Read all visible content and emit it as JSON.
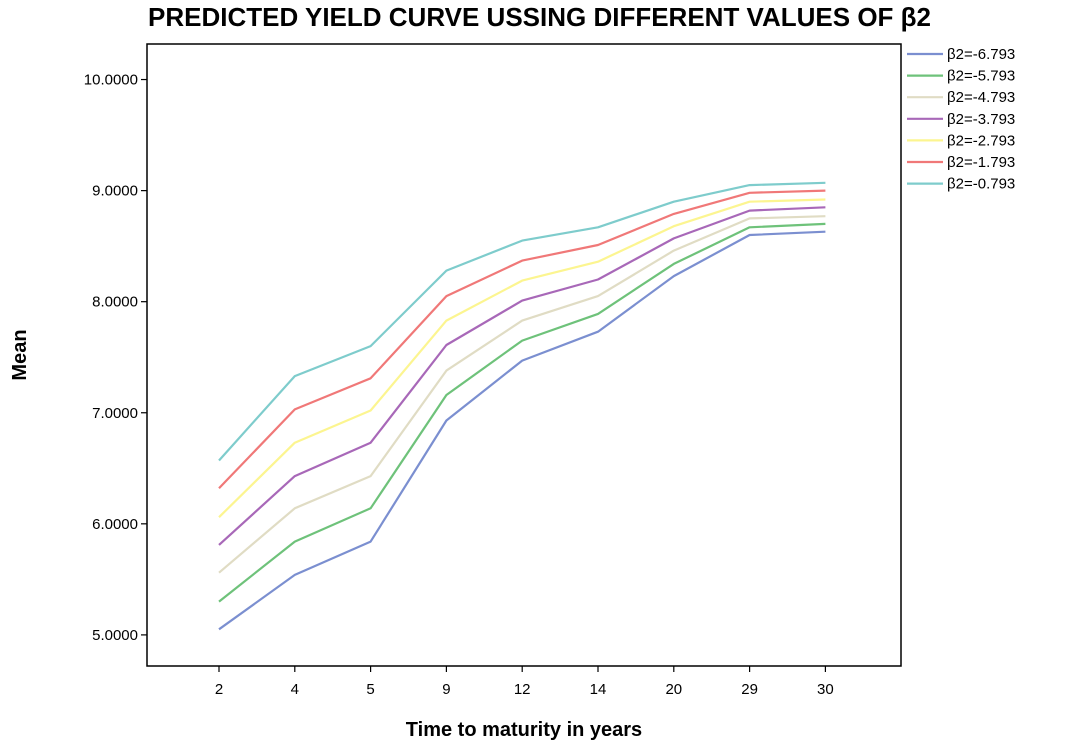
{
  "chart_data": {
    "type": "line",
    "title": "PREDICTED YIELD CURVE USSING DIFFERENT VALUES OF β2",
    "xlabel": "Time to maturity in years",
    "ylabel": "Mean",
    "categories": [
      "2",
      "4",
      "5",
      "9",
      "12",
      "14",
      "20",
      "29",
      "30"
    ],
    "ylim": [
      4.72,
      10.32
    ],
    "yticks": [
      "5.0000",
      "6.0000",
      "7.0000",
      "8.0000",
      "9.0000",
      "10.0000"
    ],
    "legend_position": "top-right, outside plot",
    "grid": false,
    "series": [
      {
        "name": "β2=-6.793",
        "color": "#7b8fd0",
        "values": [
          5.05,
          5.54,
          5.84,
          6.93,
          7.47,
          7.73,
          8.23,
          8.6,
          8.63
        ]
      },
      {
        "name": "β2=-5.793",
        "color": "#6ec27a",
        "values": [
          5.3,
          5.84,
          6.14,
          7.16,
          7.65,
          7.89,
          8.34,
          8.67,
          8.7
        ]
      },
      {
        "name": "β2=-4.793",
        "color": "#e0dcc4",
        "values": [
          5.56,
          6.14,
          6.43,
          7.38,
          7.83,
          8.05,
          8.46,
          8.75,
          8.77
        ]
      },
      {
        "name": "β2=-3.793",
        "color": "#a868b8",
        "values": [
          5.81,
          6.43,
          6.73,
          7.61,
          8.01,
          8.2,
          8.57,
          8.82,
          8.85
        ]
      },
      {
        "name": "β2=-2.793",
        "color": "#fcf590",
        "values": [
          6.06,
          6.73,
          7.02,
          7.83,
          8.19,
          8.36,
          8.68,
          8.9,
          8.92
        ]
      },
      {
        "name": "β2=-1.793",
        "color": "#f07878",
        "values": [
          6.32,
          7.03,
          7.31,
          8.05,
          8.37,
          8.51,
          8.79,
          8.98,
          9.0
        ]
      },
      {
        "name": "β2=-0.793",
        "color": "#7ecccc",
        "values": [
          6.57,
          7.33,
          7.6,
          8.28,
          8.55,
          8.67,
          8.9,
          9.05,
          9.07
        ]
      }
    ]
  }
}
